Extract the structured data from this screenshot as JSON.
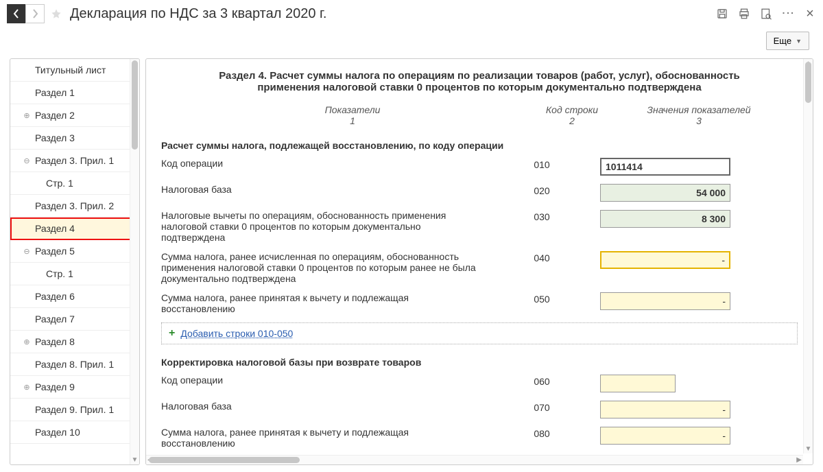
{
  "header": {
    "title": "Декларация по НДС за 3 квартал 2020 г."
  },
  "toolbar": {
    "more_label": "Еще"
  },
  "sidebar": {
    "items": [
      {
        "label": "Титульный лист",
        "level": 1,
        "expander": ""
      },
      {
        "label": "Раздел 1",
        "level": 1,
        "expander": ""
      },
      {
        "label": "Раздел 2",
        "level": 1,
        "expander": "⊕"
      },
      {
        "label": "Раздел 3",
        "level": 1,
        "expander": ""
      },
      {
        "label": "Раздел 3. Прил. 1",
        "level": 1,
        "expander": "⊖"
      },
      {
        "label": "Стр. 1",
        "level": 2,
        "expander": ""
      },
      {
        "label": "Раздел 3. Прил. 2",
        "level": 1,
        "expander": ""
      },
      {
        "label": "Раздел 4",
        "level": 1,
        "expander": "",
        "selected": true
      },
      {
        "label": "Раздел 5",
        "level": 1,
        "expander": "⊖"
      },
      {
        "label": "Стр. 1",
        "level": 2,
        "expander": ""
      },
      {
        "label": "Раздел 6",
        "level": 1,
        "expander": ""
      },
      {
        "label": "Раздел 7",
        "level": 1,
        "expander": ""
      },
      {
        "label": "Раздел 8",
        "level": 1,
        "expander": "⊕"
      },
      {
        "label": "Раздел 8. Прил. 1",
        "level": 1,
        "expander": ""
      },
      {
        "label": "Раздел 9",
        "level": 1,
        "expander": "⊕"
      },
      {
        "label": "Раздел 9. Прил. 1",
        "level": 1,
        "expander": ""
      },
      {
        "label": "Раздел 10",
        "level": 1,
        "expander": ""
      }
    ]
  },
  "section": {
    "title": "Раздел 4. Расчет суммы налога по операциям по реализации товаров (работ, услуг), обоснованность применения налоговой ставки 0 процентов по которым документально подтверждена",
    "col_headers": {
      "c1": "Показатели",
      "c1sub": "1",
      "c2": "Код строки",
      "c2sub": "2",
      "c3": "Значения показателей",
      "c3sub": "3"
    },
    "group1_heading": "Расчет суммы налога, подлежащей восстановлению, по коду операции",
    "rows1": [
      {
        "label": "Код операции",
        "code": "010",
        "value": "1011414",
        "style": "code"
      },
      {
        "label": "Налоговая база",
        "code": "020",
        "value": "54 000",
        "style": "green"
      },
      {
        "label": "Налоговые вычеты по операциям, обоснованность применения налоговой ставки 0 процентов по которым документально подтверждена",
        "code": "030",
        "value": "8 300",
        "style": "green"
      },
      {
        "label": "Сумма налога, ранее исчисленная по операциям, обоснованность применения налоговой ставки 0 процентов по которым ранее не была документально подтверждена",
        "code": "040",
        "value": "-",
        "style": "yellow-thick"
      },
      {
        "label": "Сумма налога, ранее принятая к вычету и подлежащая восстановлению",
        "code": "050",
        "value": "-",
        "style": "yellow"
      }
    ],
    "add_link": "Добавить строки 010-050",
    "group2_heading": "Корректировка налоговой базы при возврате товаров",
    "rows2": [
      {
        "label": "Код операции",
        "code": "060",
        "value": "",
        "style": "yellow-short"
      },
      {
        "label": "Налоговая база",
        "code": "070",
        "value": "-",
        "style": "yellow"
      },
      {
        "label": "Сумма налога, ранее принятая к вычету и подлежащая восстановлению",
        "code": "080",
        "value": "-",
        "style": "yellow"
      }
    ]
  },
  "colors": {
    "selected_bg": "#fff7dd",
    "selected_border": "#e11",
    "green_bg": "#e8f0e2",
    "yellow_bg": "#fff9d6",
    "yellow_border": "#e5b300"
  }
}
